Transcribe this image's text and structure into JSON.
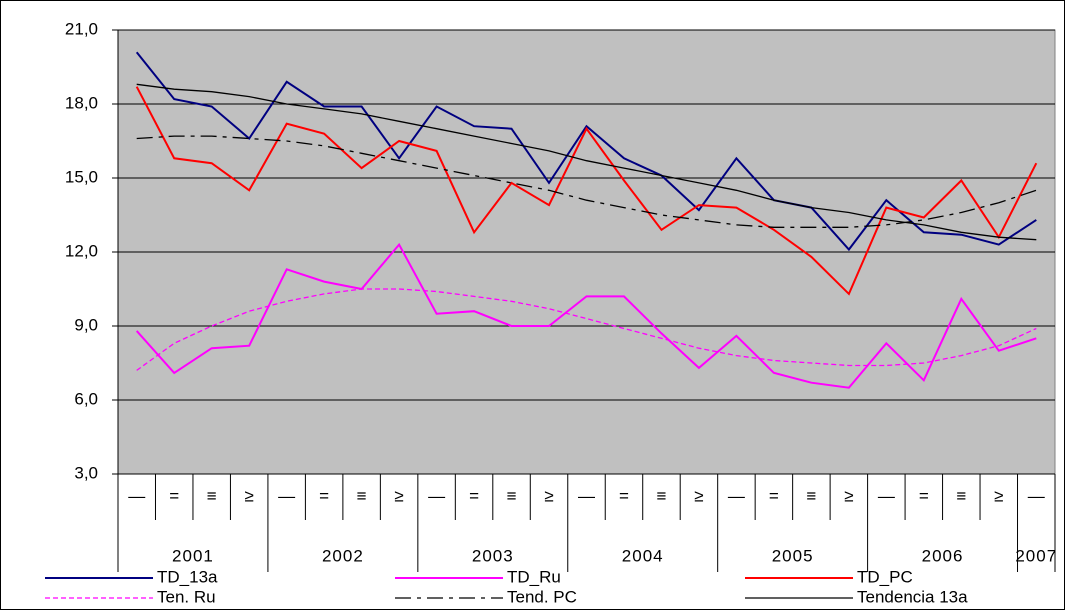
{
  "chart_data": {
    "type": "line",
    "categories": [
      "—",
      "=",
      "≡",
      "≥",
      "—",
      "=",
      "≡",
      "≥",
      "—",
      "=",
      "≡",
      "≥",
      "—",
      "=",
      "≡",
      "≥",
      "—",
      "=",
      "≡",
      "≥",
      "—",
      "=",
      "≡",
      "≥",
      "—"
    ],
    "category_groups": [
      {
        "label": "2001",
        "count": 4
      },
      {
        "label": "2002",
        "count": 4
      },
      {
        "label": "2003",
        "count": 4
      },
      {
        "label": "2004",
        "count": 4
      },
      {
        "label": "2005",
        "count": 4
      },
      {
        "label": "2006",
        "count": 4
      },
      {
        "label": "2007",
        "count": 1
      }
    ],
    "ylim": [
      3,
      21
    ],
    "yticks": [
      {
        "value": 3,
        "label": "3,0"
      },
      {
        "value": 6,
        "label": "6,0"
      },
      {
        "value": 9,
        "label": "9,0"
      },
      {
        "value": 12,
        "label": "12,0"
      },
      {
        "value": 15,
        "label": "15,0"
      },
      {
        "value": 18,
        "label": "18,0"
      },
      {
        "value": 21,
        "label": "21,0"
      }
    ],
    "grid": true,
    "series": [
      {
        "name": "TD_13a",
        "color": "#000080",
        "dash": "solid",
        "values": [
          20.1,
          18.2,
          17.9,
          16.6,
          18.9,
          17.9,
          17.9,
          15.8,
          17.9,
          17.1,
          17.0,
          14.8,
          17.1,
          15.8,
          15.1,
          13.7,
          15.8,
          14.1,
          13.8,
          12.1,
          14.1,
          12.8,
          12.7,
          12.3,
          13.3
        ]
      },
      {
        "name": "TD_Ru",
        "color": "#ff00ff",
        "dash": "solid",
        "values": [
          8.8,
          7.1,
          8.1,
          8.2,
          11.3,
          10.8,
          10.5,
          12.3,
          9.5,
          9.6,
          9.0,
          9.0,
          10.2,
          10.2,
          8.7,
          7.3,
          8.6,
          7.1,
          6.7,
          6.5,
          8.3,
          6.8,
          10.1,
          8.0,
          8.5
        ]
      },
      {
        "name": "TD_PC",
        "color": "#ff0000",
        "dash": "solid",
        "values": [
          18.7,
          15.8,
          15.6,
          14.5,
          17.2,
          16.8,
          15.4,
          16.5,
          16.1,
          12.8,
          14.8,
          13.9,
          17.0,
          14.9,
          12.9,
          13.9,
          13.8,
          12.9,
          11.8,
          10.3,
          13.8,
          13.4,
          14.9,
          12.6,
          15.6
        ]
      },
      {
        "name": "Ten. Ru",
        "color": "#ff00ff",
        "dash": "dashed",
        "values": [
          7.2,
          8.3,
          9.0,
          9.6,
          10.0,
          10.3,
          10.5,
          10.5,
          10.4,
          10.2,
          10.0,
          9.7,
          9.3,
          8.9,
          8.5,
          8.1,
          7.8,
          7.6,
          7.5,
          7.4,
          7.4,
          7.5,
          7.8,
          8.2,
          8.9
        ]
      },
      {
        "name": "Tend. PC",
        "color": "#000000",
        "dash": "longdash",
        "values": [
          16.6,
          16.7,
          16.7,
          16.6,
          16.5,
          16.3,
          16.0,
          15.7,
          15.4,
          15.1,
          14.8,
          14.5,
          14.1,
          13.8,
          13.5,
          13.3,
          13.1,
          13.0,
          13.0,
          13.0,
          13.1,
          13.3,
          13.6,
          14.0,
          14.5
        ]
      },
      {
        "name": "Tendencia 13a",
        "color": "#000000",
        "dash": "solid",
        "values": [
          18.8,
          18.6,
          18.5,
          18.3,
          18.0,
          17.8,
          17.6,
          17.3,
          17.0,
          16.7,
          16.4,
          16.1,
          15.7,
          15.4,
          15.1,
          14.8,
          14.5,
          14.1,
          13.8,
          13.6,
          13.3,
          13.1,
          12.8,
          12.6,
          12.5
        ]
      }
    ]
  }
}
